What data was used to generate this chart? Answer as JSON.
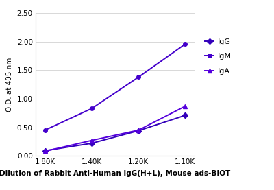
{
  "x_labels": [
    "1:80K",
    "1:40K",
    "1:20K",
    "1:10K"
  ],
  "x_positions": [
    0,
    1,
    2,
    3
  ],
  "series": [
    {
      "name": "IgG",
      "values": [
        0.09,
        0.22,
        0.44,
        0.71
      ],
      "color": "#3300BB",
      "marker": "D",
      "markersize": 4,
      "linewidth": 1.4
    },
    {
      "name": "IgM",
      "values": [
        0.45,
        0.83,
        1.38,
        1.96
      ],
      "color": "#4400CC",
      "marker": "o",
      "markersize": 4,
      "linewidth": 1.4
    },
    {
      "name": "IgA",
      "values": [
        0.08,
        0.27,
        0.45,
        0.87
      ],
      "color": "#5500DD",
      "marker": "^",
      "markersize": 4,
      "linewidth": 1.4
    }
  ],
  "ylabel": "O.D. at 405 nm",
  "xlabel": "Dilution of Rabbit Anti-Human IgG(H+L), Mouse ads-BIOT",
  "ylim": [
    0.0,
    2.5
  ],
  "yticks": [
    0.0,
    0.5,
    1.0,
    1.5,
    2.0,
    2.5
  ],
  "background_color": "#ffffff",
  "grid_color": "#d8d8d8",
  "xlabel_fontsize": 7.5,
  "ylabel_fontsize": 7.5,
  "tick_fontsize": 7.5,
  "legend_fontsize": 8
}
